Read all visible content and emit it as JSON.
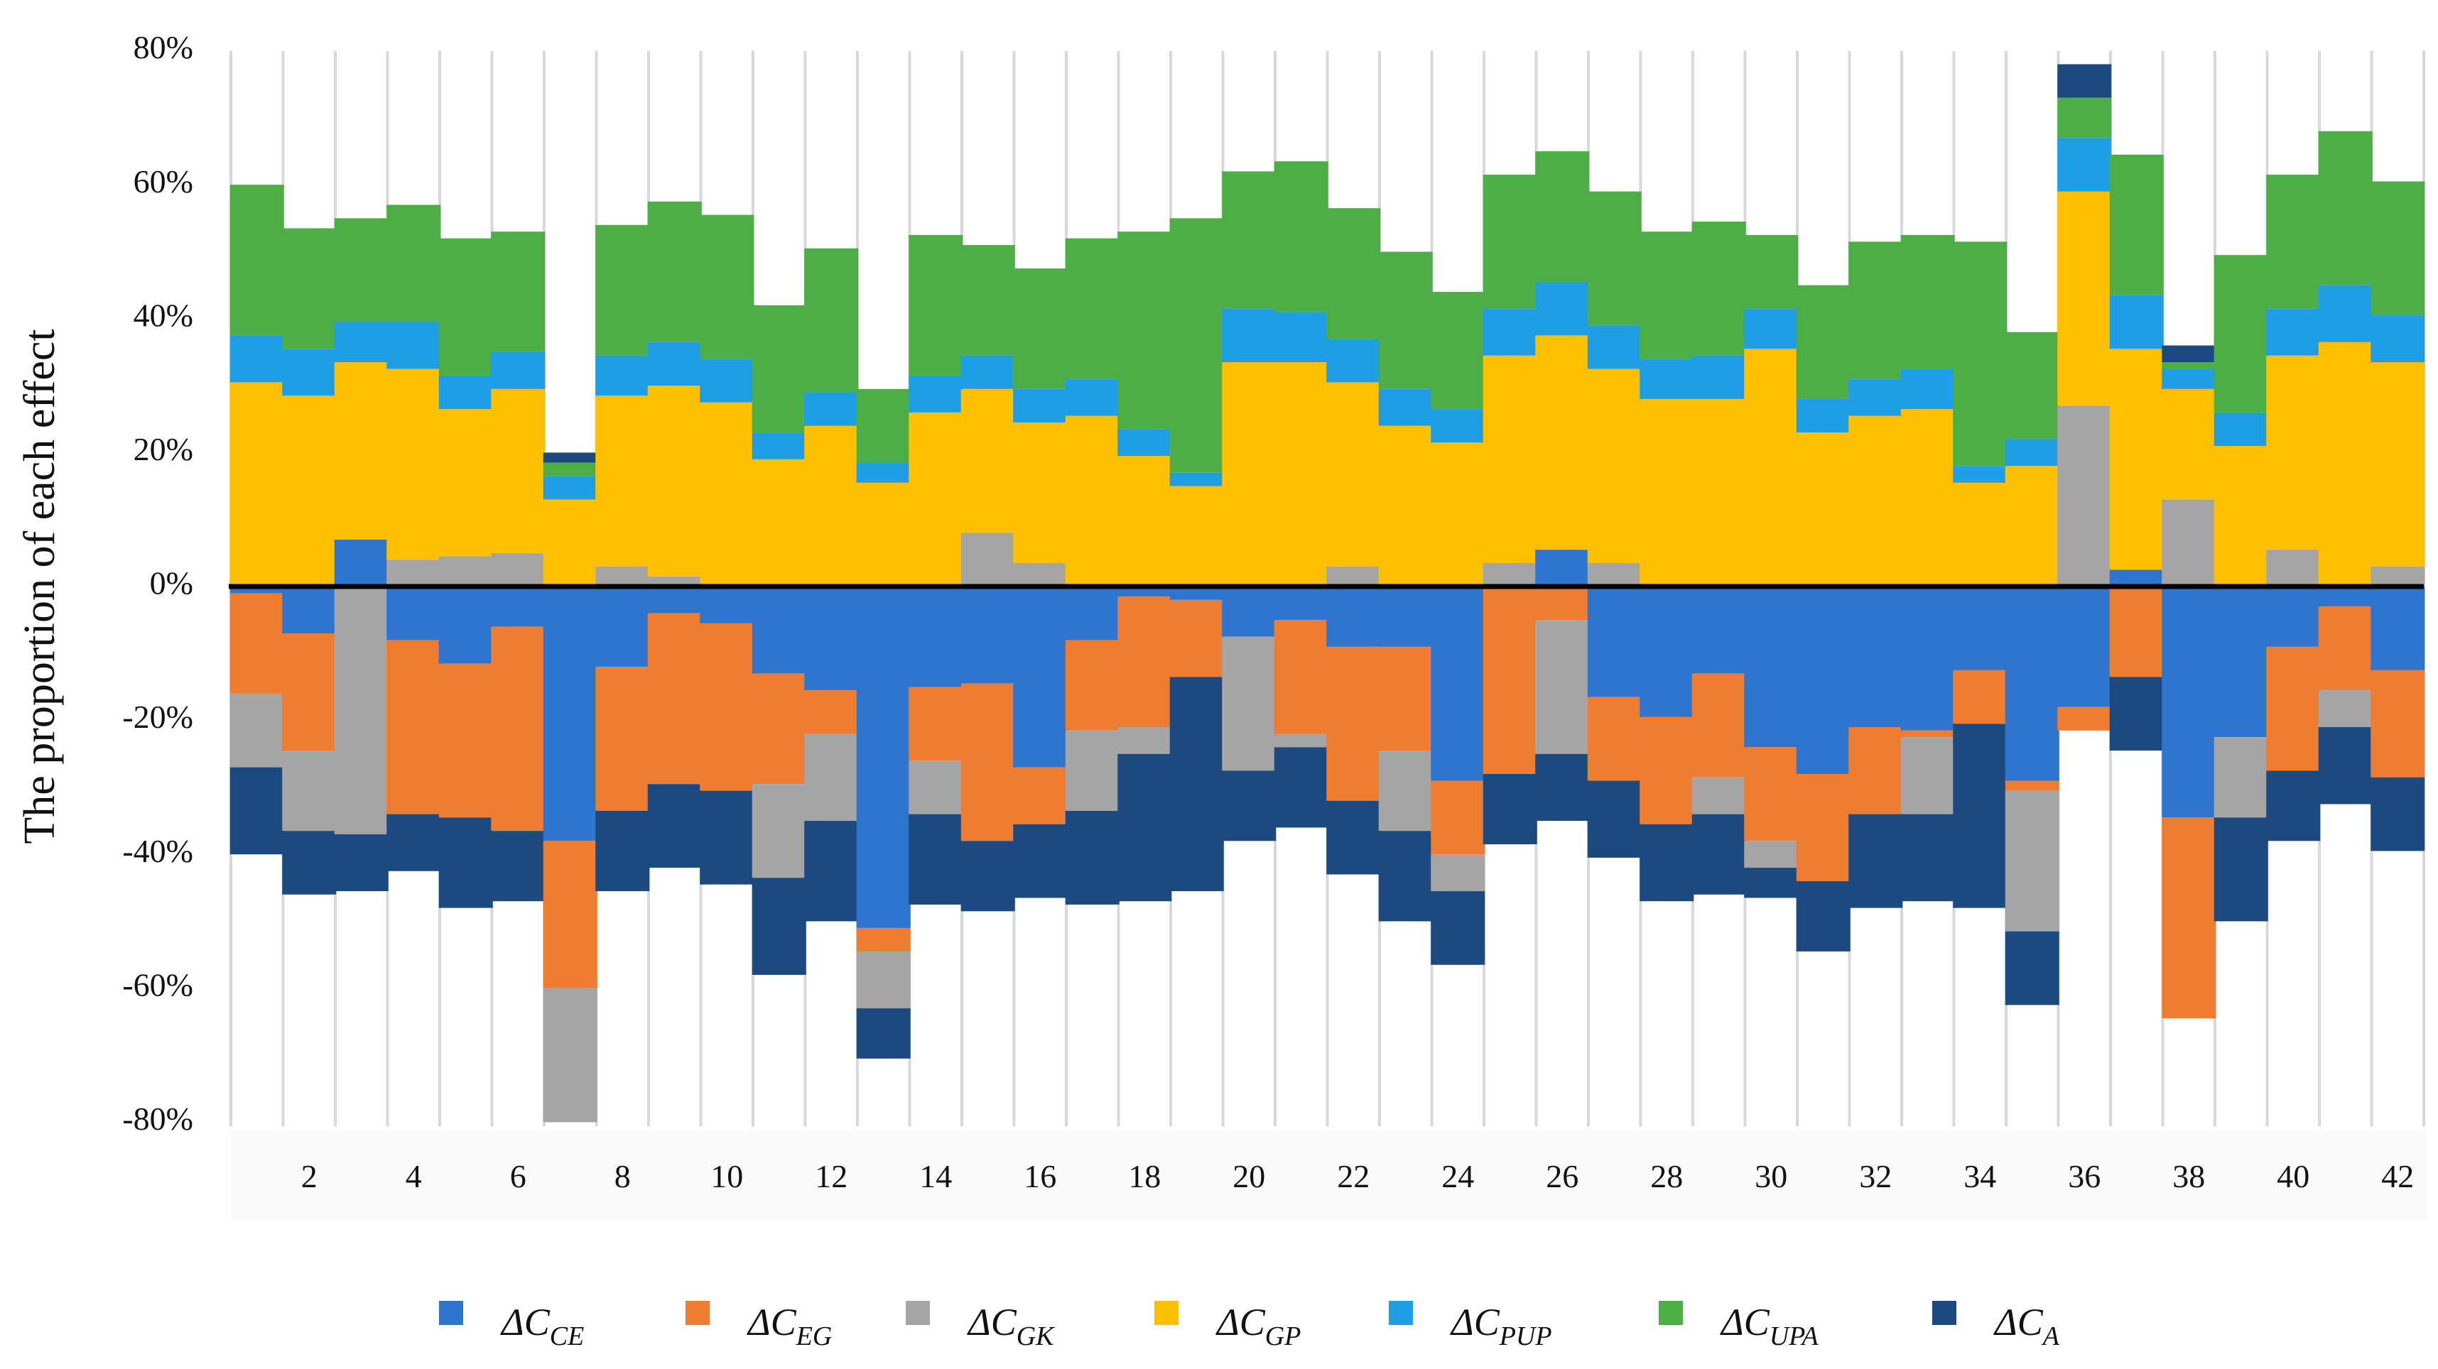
{
  "chart_data": {
    "type": "bar",
    "stacked": true,
    "title": "",
    "ylabel": "The proportion of each effect",
    "xlabel": "",
    "ylim": [
      -80,
      80
    ],
    "ytick_values": [
      80,
      60,
      40,
      20,
      0,
      -20,
      -40,
      -60,
      -80
    ],
    "ytick_labels": [
      "80%",
      "60%",
      "40%",
      "20%",
      "0%",
      "-20%",
      "-40%",
      "-60%",
      "-80%"
    ],
    "categories": [
      "1",
      "2",
      "3",
      "4",
      "5",
      "6",
      "7",
      "8",
      "9",
      "10",
      "11",
      "12",
      "13",
      "14",
      "15",
      "16",
      "17",
      "18",
      "19",
      "20",
      "21",
      "22",
      "23",
      "24",
      "25",
      "26",
      "27",
      "28",
      "29",
      "30",
      "31",
      "32",
      "33",
      "34",
      "35",
      "36",
      "37",
      "38",
      "39",
      "40",
      "41",
      "42"
    ],
    "xtick_labels": [
      "",
      "2",
      "",
      "4",
      "",
      "6",
      "",
      "8",
      "",
      "10",
      "",
      "12",
      "",
      "14",
      "",
      "16",
      "",
      "18",
      "",
      "20",
      "",
      "22",
      "",
      "24",
      "",
      "26",
      "",
      "28",
      "",
      "30",
      "",
      "32",
      "",
      "34",
      "",
      "36",
      "",
      "38",
      "",
      "40",
      "",
      "42"
    ],
    "grid": "vertical",
    "legend_position": "bottom",
    "series": [
      {
        "name": "ΔC",
        "sub": "CE",
        "color": "#2e75cf",
        "values": [
          -1,
          -7,
          7,
          -8,
          -11.5,
          -6,
          -38,
          -12,
          -4,
          -5.5,
          -13,
          -15.5,
          -51,
          -15,
          -14.5,
          -27,
          -8,
          -1.5,
          -2,
          -7.5,
          -5,
          -9,
          -9,
          -29,
          0,
          5.5,
          -16.5,
          -19.5,
          -13,
          -24,
          -28,
          -21,
          -21.5,
          -12.5,
          -29,
          -18,
          2.5,
          -34.5,
          -22.5,
          -9,
          -3,
          -12.5
        ]
      },
      {
        "name": "ΔC",
        "sub": "EG",
        "color": "#ee7d31",
        "values": [
          -15,
          -17.5,
          0,
          -26,
          -23,
          -30.5,
          -22,
          -21.5,
          -25.5,
          -25,
          -16.5,
          -6.5,
          -3.5,
          -11,
          -23.5,
          -8.5,
          -13.5,
          -19.5,
          -11.5,
          0,
          -17,
          -23,
          -15.5,
          -11,
          -28,
          -5,
          -12.5,
          -16,
          -15.5,
          -14,
          -16,
          -13,
          -1,
          -8,
          -1.5,
          -3.5,
          -13.5,
          -30,
          0,
          -18.5,
          -12.5,
          -16
        ]
      },
      {
        "name": "ΔC",
        "sub": "GK",
        "color": "#a5a5a5",
        "values": [
          -11,
          -12,
          -37,
          0,
          0,
          0,
          -20,
          0,
          0,
          0,
          -14,
          -13,
          -8.5,
          -8,
          0,
          0,
          -12,
          -4,
          0,
          -20,
          -2,
          0,
          -12,
          -5.5,
          0,
          -20,
          0,
          0,
          -5.5,
          -4,
          0,
          0,
          -11.5,
          0,
          -21,
          0,
          0,
          0,
          -12,
          0,
          -5.5,
          0
        ],
        "pos_values": [
          0,
          0,
          0,
          4,
          4.5,
          5,
          0,
          3,
          1.5,
          0,
          0,
          0,
          0,
          0,
          8,
          3.5,
          0,
          0,
          0,
          0,
          0,
          3,
          0,
          0,
          3.5,
          0,
          3.5,
          0,
          0,
          0,
          0,
          0,
          0,
          0,
          0,
          27,
          0,
          13,
          0,
          5.5,
          0,
          3
        ]
      },
      {
        "name": "ΔC",
        "sub": "GP",
        "color": "#fec000",
        "values": [
          30.5,
          28.5,
          26.5,
          28.5,
          22,
          24.5,
          13,
          25.5,
          28.5,
          27.5,
          19,
          24,
          15.5,
          26,
          21.5,
          21,
          25.5,
          19.5,
          15,
          33.5,
          33.5,
          27.5,
          24,
          21.5,
          31,
          32,
          29,
          28,
          28,
          35.5,
          23,
          25.5,
          26.5,
          15.5,
          18,
          32,
          33,
          16.5,
          21,
          29,
          36.5,
          30.5
        ]
      },
      {
        "name": "ΔC",
        "sub": "PUP",
        "color": "#1e9ee5",
        "values": [
          7,
          7,
          6,
          7,
          5,
          5.5,
          3.5,
          6,
          6.5,
          6.5,
          4,
          5,
          3,
          5.5,
          5,
          5,
          5.5,
          4,
          2,
          8,
          7.5,
          6.5,
          5.5,
          5,
          7,
          8,
          6.5,
          6,
          6.5,
          6,
          5,
          5.5,
          6,
          2.5,
          4,
          8,
          8,
          3,
          5,
          7,
          8.5,
          7
        ]
      },
      {
        "name": "ΔC",
        "sub": "UPA",
        "color": "#4dae45",
        "values": [
          22.5,
          18,
          15.5,
          17.5,
          20.5,
          18,
          2,
          19.5,
          21,
          21.5,
          19,
          21.5,
          11,
          21,
          16.5,
          18,
          21,
          29.5,
          38,
          20.5,
          22.5,
          19.5,
          20.5,
          17.5,
          20,
          19.5,
          20,
          19,
          20,
          11,
          17,
          20.5,
          20,
          33.5,
          16,
          6,
          21,
          1,
          23.5,
          20,
          23,
          20
        ]
      },
      {
        "name": "ΔC",
        "sub": "A",
        "color": "#1c4a7e",
        "values": [
          -13,
          -9.5,
          -8.5,
          -8.5,
          -13.5,
          -10.5,
          0,
          -12,
          -12.5,
          -14,
          -14.5,
          -15,
          -7.5,
          -13.5,
          -10.5,
          -11,
          -14,
          -22,
          -32,
          -10.5,
          -12,
          -11,
          -13.5,
          -11,
          -10.5,
          -10,
          -11.5,
          -11.5,
          -12,
          -4.5,
          -10.5,
          -14,
          -13,
          -27.5,
          -11,
          0,
          -11,
          0,
          -15.5,
          -10.5,
          -11.5,
          -11
        ],
        "pos_values": [
          0,
          0,
          0,
          0,
          0,
          0,
          1.5,
          0,
          0,
          0,
          0,
          0,
          0,
          0,
          0,
          0,
          0,
          0,
          0,
          0,
          0,
          0,
          0,
          0,
          0,
          0,
          0,
          0,
          0,
          0,
          0,
          0,
          0,
          0,
          0,
          5,
          0,
          2.5,
          0,
          0,
          0,
          0
        ]
      }
    ]
  }
}
